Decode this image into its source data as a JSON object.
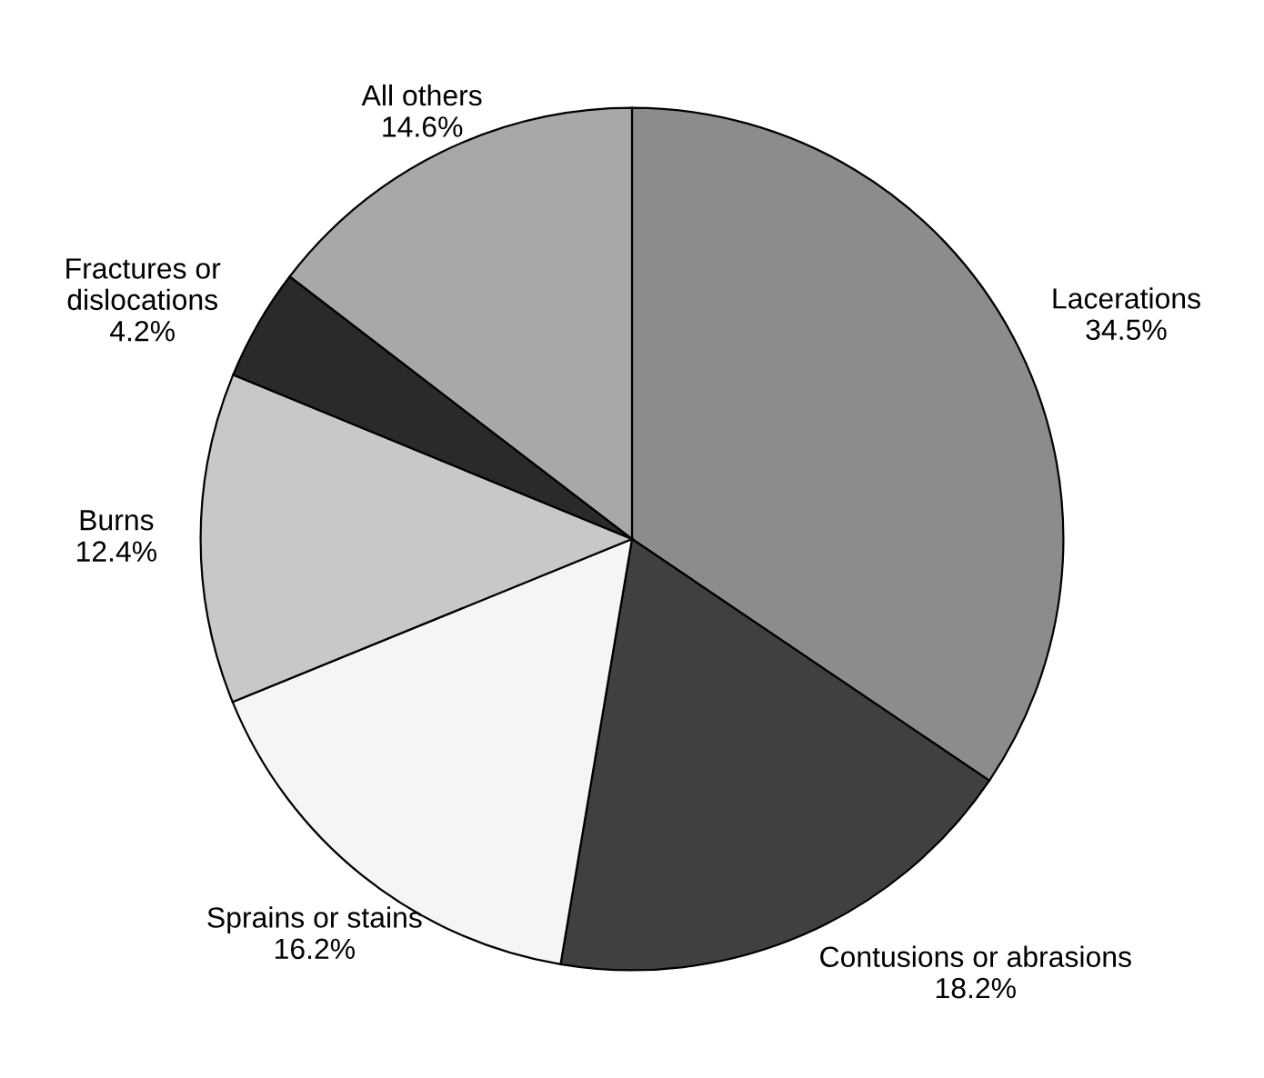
{
  "chart_data": {
    "type": "pie",
    "categories": [
      "Lacerations",
      "Contusions or abrasions",
      "Sprains or stains",
      "Burns",
      "Fractures or\ndislocations",
      "All others"
    ],
    "values": [
      34.5,
      18.2,
      16.2,
      12.4,
      4.2,
      14.6
    ],
    "value_labels": [
      "34.5%",
      "18.2%",
      "16.2%",
      "12.4%",
      "4.2%",
      "14.6%"
    ],
    "colors": [
      "#8c8c8c",
      "#404040",
      "#f5f5f5",
      "#c8c8c8",
      "#2a2a2a",
      "#a8a8a8"
    ]
  }
}
